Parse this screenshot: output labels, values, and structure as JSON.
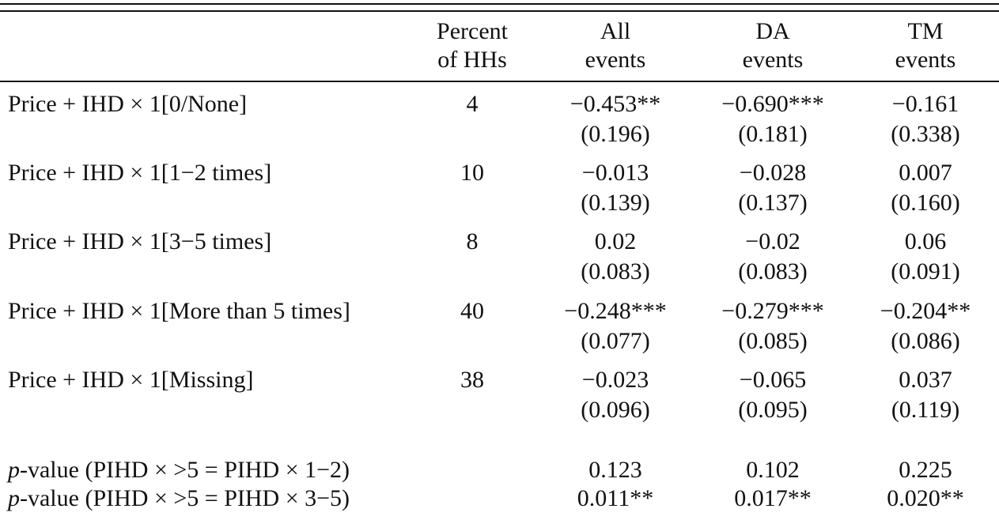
{
  "columns": [
    {
      "line1": "Percent",
      "line2": "of HHs"
    },
    {
      "line1": "All",
      "line2": "events"
    },
    {
      "line1": "DA",
      "line2": "events"
    },
    {
      "line1": "TM",
      "line2": "events"
    }
  ],
  "rows": [
    {
      "label": "Price + IHD × 1[0/None]",
      "pct": "4",
      "all": "−0.453**",
      "all_se": "(0.196)",
      "da": "−0.690***",
      "da_se": "(0.181)",
      "tm": "−0.161",
      "tm_se": "(0.338)"
    },
    {
      "label": "Price + IHD × 1[1−2 times]",
      "pct": "10",
      "all": "−0.013",
      "all_se": "(0.139)",
      "da": "−0.028",
      "da_se": "(0.137)",
      "tm": "0.007",
      "tm_se": "(0.160)"
    },
    {
      "label": "Price + IHD × 1[3−5 times]",
      "pct": "8",
      "all": "0.02",
      "all_se": "(0.083)",
      "da": "−0.02",
      "da_se": "(0.083)",
      "tm": "0.06",
      "tm_se": "(0.091)"
    },
    {
      "label": "Price + IHD × 1[More than 5 times]",
      "pct": "40",
      "all": "−0.248***",
      "all_se": "(0.077)",
      "da": "−0.279***",
      "da_se": "(0.085)",
      "tm": "−0.204**",
      "tm_se": "(0.086)"
    },
    {
      "label": "Price + IHD × 1[Missing]",
      "pct": "38",
      "all": "−0.023",
      "all_se": "(0.096)",
      "da": "−0.065",
      "da_se": "(0.095)",
      "tm": "0.037",
      "tm_se": "(0.119)"
    }
  ],
  "pvalues": [
    {
      "label_italic": "p",
      "label_rest": "-value (PIHD × >5 = PIHD × 1−2)",
      "all": "0.123",
      "da": "0.102",
      "tm": "0.225"
    },
    {
      "label_italic": "p",
      "label_rest": "-value (PIHD × >5 = PIHD × 3−5)",
      "all": "0.011**",
      "da": "0.017**",
      "tm": "0.020**"
    }
  ]
}
